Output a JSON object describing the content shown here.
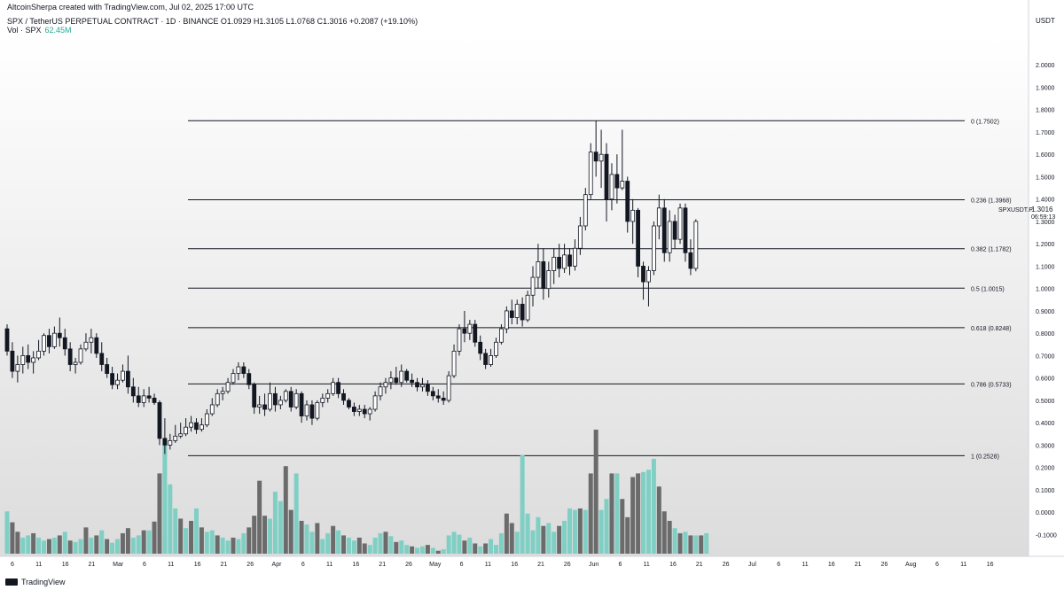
{
  "header": {
    "creator": "AltcoinSherpa created with TradingView.com, Jul 02, 2025 17:00 UTC",
    "symbol_line": "SPX / TetherUS PERPETUAL CONTRACT · 1D · BINANCE   O1.0929  H1.3105  L1.0768  C1.3016  +0.2087 (+19.10%)",
    "vol_label": "Vol · SPX",
    "vol_value": "62.45M"
  },
  "footer": {
    "logo_text": "TradingView"
  },
  "colors": {
    "up": "#ffffff",
    "down": "#131722",
    "candle_border": "#131722",
    "vol_up": "#7fcfc4",
    "vol_down": "#6b6b6b",
    "fib_line": "#131722",
    "axis_text": "#131722"
  },
  "chart_data": {
    "type": "candlestick",
    "title": "SPX / TetherUS PERPETUAL CONTRACT · 1D · BINANCE",
    "symbol_label": "SPXUSDT.P",
    "countdown": "06:59:13",
    "last_price": "1.3016",
    "y_axis_unit": "USDT",
    "ylim": [
      -0.15,
      2.1
    ],
    "y_ticks": [
      "2.0000",
      "1.9000",
      "1.8000",
      "1.7000",
      "1.6000",
      "1.5000",
      "1.4000",
      "1.3000",
      "1.2000",
      "1.1000",
      "1.0000",
      "0.9000",
      "0.8000",
      "0.7000",
      "0.6000",
      "0.5000",
      "0.4000",
      "0.3000",
      "0.2000",
      "0.1000",
      "0.0000",
      "-0.1000"
    ],
    "x_ticks": [
      "6",
      "11",
      "16",
      "21",
      "Mar",
      "6",
      "11",
      "16",
      "21",
      "26",
      "Apr",
      "6",
      "11",
      "16",
      "21",
      "26",
      "May",
      "6",
      "11",
      "16",
      "21",
      "26",
      "Jun",
      "6",
      "11",
      "16",
      "21",
      "26",
      "Jul",
      "6",
      "11",
      "16",
      "21",
      "26",
      "Aug",
      "6",
      "11",
      "16"
    ],
    "fib_levels": [
      {
        "ratio": 0,
        "price": 1.7502,
        "label": "0 (1.7502)"
      },
      {
        "ratio": 0.236,
        "price": 1.3968,
        "label": "0.236 (1.3968)"
      },
      {
        "ratio": 0.382,
        "price": 1.1782,
        "label": "0.382 (1.1782)"
      },
      {
        "ratio": 0.5,
        "price": 1.0015,
        "label": "0.5 (1.0015)"
      },
      {
        "ratio": 0.618,
        "price": 0.8248,
        "label": "0.618 (0.8248)"
      },
      {
        "ratio": 0.786,
        "price": 0.5733,
        "label": "0.786 (0.5733)"
      },
      {
        "ratio": 1,
        "price": 0.2528,
        "label": "1 (0.2528)"
      }
    ],
    "candles": [
      [
        0.82,
        0.84,
        0.7,
        0.72
      ],
      [
        0.72,
        0.76,
        0.6,
        0.63
      ],
      [
        0.63,
        0.7,
        0.58,
        0.66
      ],
      [
        0.66,
        0.74,
        0.62,
        0.7
      ],
      [
        0.7,
        0.75,
        0.64,
        0.67
      ],
      [
        0.67,
        0.72,
        0.62,
        0.69
      ],
      [
        0.69,
        0.77,
        0.68,
        0.72
      ],
      [
        0.72,
        0.8,
        0.7,
        0.79
      ],
      [
        0.79,
        0.82,
        0.71,
        0.74
      ],
      [
        0.74,
        0.83,
        0.73,
        0.8
      ],
      [
        0.8,
        0.87,
        0.74,
        0.78
      ],
      [
        0.78,
        0.82,
        0.7,
        0.73
      ],
      [
        0.73,
        0.76,
        0.63,
        0.66
      ],
      [
        0.66,
        0.69,
        0.62,
        0.67
      ],
      [
        0.67,
        0.75,
        0.66,
        0.73
      ],
      [
        0.73,
        0.8,
        0.72,
        0.76
      ],
      [
        0.76,
        0.82,
        0.71,
        0.78
      ],
      [
        0.78,
        0.8,
        0.69,
        0.71
      ],
      [
        0.71,
        0.76,
        0.63,
        0.66
      ],
      [
        0.66,
        0.69,
        0.6,
        0.62
      ],
      [
        0.62,
        0.65,
        0.55,
        0.57
      ],
      [
        0.57,
        0.62,
        0.55,
        0.59
      ],
      [
        0.59,
        0.66,
        0.58,
        0.63
      ],
      [
        0.63,
        0.7,
        0.53,
        0.56
      ],
      [
        0.56,
        0.6,
        0.49,
        0.52
      ],
      [
        0.52,
        0.56,
        0.47,
        0.49
      ],
      [
        0.49,
        0.55,
        0.47,
        0.52
      ],
      [
        0.52,
        0.56,
        0.49,
        0.51
      ],
      [
        0.51,
        0.53,
        0.48,
        0.49
      ],
      [
        0.49,
        0.5,
        0.3,
        0.33
      ],
      [
        0.33,
        0.42,
        0.26,
        0.3
      ],
      [
        0.3,
        0.35,
        0.28,
        0.32
      ],
      [
        0.32,
        0.39,
        0.31,
        0.34
      ],
      [
        0.34,
        0.4,
        0.33,
        0.35
      ],
      [
        0.35,
        0.42,
        0.34,
        0.38
      ],
      [
        0.38,
        0.43,
        0.36,
        0.4
      ],
      [
        0.4,
        0.42,
        0.35,
        0.37
      ],
      [
        0.37,
        0.42,
        0.36,
        0.39
      ],
      [
        0.39,
        0.46,
        0.38,
        0.44
      ],
      [
        0.44,
        0.51,
        0.43,
        0.48
      ],
      [
        0.48,
        0.55,
        0.47,
        0.53
      ],
      [
        0.53,
        0.56,
        0.5,
        0.54
      ],
      [
        0.54,
        0.6,
        0.53,
        0.58
      ],
      [
        0.58,
        0.64,
        0.57,
        0.62
      ],
      [
        0.62,
        0.67,
        0.59,
        0.65
      ],
      [
        0.65,
        0.67,
        0.6,
        0.62
      ],
      [
        0.62,
        0.64,
        0.55,
        0.57
      ],
      [
        0.57,
        0.58,
        0.44,
        0.47
      ],
      [
        0.47,
        0.52,
        0.44,
        0.48
      ],
      [
        0.48,
        0.53,
        0.43,
        0.46
      ],
      [
        0.46,
        0.58,
        0.45,
        0.53
      ],
      [
        0.53,
        0.56,
        0.45,
        0.48
      ],
      [
        0.48,
        0.52,
        0.46,
        0.5
      ],
      [
        0.5,
        0.55,
        0.49,
        0.54
      ],
      [
        0.54,
        0.56,
        0.45,
        0.47
      ],
      [
        0.47,
        0.55,
        0.46,
        0.53
      ],
      [
        0.53,
        0.54,
        0.4,
        0.43
      ],
      [
        0.43,
        0.5,
        0.41,
        0.48
      ],
      [
        0.48,
        0.5,
        0.39,
        0.42
      ],
      [
        0.42,
        0.5,
        0.41,
        0.49
      ],
      [
        0.49,
        0.53,
        0.47,
        0.51
      ],
      [
        0.51,
        0.55,
        0.49,
        0.53
      ],
      [
        0.53,
        0.6,
        0.52,
        0.58
      ],
      [
        0.58,
        0.6,
        0.51,
        0.53
      ],
      [
        0.53,
        0.55,
        0.48,
        0.5
      ],
      [
        0.5,
        0.51,
        0.46,
        0.47
      ],
      [
        0.47,
        0.49,
        0.43,
        0.45
      ],
      [
        0.45,
        0.48,
        0.43,
        0.46
      ],
      [
        0.46,
        0.48,
        0.42,
        0.44
      ],
      [
        0.44,
        0.47,
        0.41,
        0.46
      ],
      [
        0.46,
        0.54,
        0.45,
        0.52
      ],
      [
        0.52,
        0.58,
        0.5,
        0.56
      ],
      [
        0.56,
        0.6,
        0.53,
        0.58
      ],
      [
        0.58,
        0.63,
        0.55,
        0.6
      ],
      [
        0.6,
        0.65,
        0.57,
        0.58
      ],
      [
        0.58,
        0.66,
        0.56,
        0.63
      ],
      [
        0.63,
        0.64,
        0.58,
        0.59
      ],
      [
        0.59,
        0.62,
        0.56,
        0.58
      ],
      [
        0.58,
        0.6,
        0.54,
        0.56
      ],
      [
        0.56,
        0.6,
        0.54,
        0.57
      ],
      [
        0.57,
        0.59,
        0.52,
        0.54
      ],
      [
        0.54,
        0.56,
        0.5,
        0.52
      ],
      [
        0.52,
        0.55,
        0.49,
        0.51
      ],
      [
        0.51,
        0.54,
        0.48,
        0.5
      ],
      [
        0.5,
        0.63,
        0.49,
        0.61
      ],
      [
        0.61,
        0.75,
        0.6,
        0.72
      ],
      [
        0.72,
        0.84,
        0.7,
        0.82
      ],
      [
        0.82,
        0.9,
        0.76,
        0.8
      ],
      [
        0.8,
        0.86,
        0.77,
        0.84
      ],
      [
        0.84,
        0.86,
        0.74,
        0.76
      ],
      [
        0.76,
        0.79,
        0.68,
        0.71
      ],
      [
        0.71,
        0.73,
        0.64,
        0.66
      ],
      [
        0.66,
        0.73,
        0.65,
        0.7
      ],
      [
        0.7,
        0.78,
        0.69,
        0.76
      ],
      [
        0.76,
        0.84,
        0.75,
        0.82
      ],
      [
        0.82,
        0.92,
        0.8,
        0.9
      ],
      [
        0.9,
        0.95,
        0.84,
        0.87
      ],
      [
        0.87,
        0.95,
        0.84,
        0.93
      ],
      [
        0.93,
        0.96,
        0.83,
        0.86
      ],
      [
        0.86,
        0.99,
        0.85,
        0.97
      ],
      [
        0.97,
        1.1,
        0.92,
        1.05
      ],
      [
        1.05,
        1.2,
        1.0,
        1.12
      ],
      [
        1.12,
        1.18,
        0.95,
        1.0
      ],
      [
        1.0,
        1.12,
        0.96,
        1.08
      ],
      [
        1.08,
        1.18,
        1.02,
        1.14
      ],
      [
        1.14,
        1.2,
        1.05,
        1.09
      ],
      [
        1.09,
        1.2,
        1.07,
        1.15
      ],
      [
        1.15,
        1.18,
        1.06,
        1.1
      ],
      [
        1.1,
        1.22,
        1.08,
        1.18
      ],
      [
        1.18,
        1.32,
        1.15,
        1.28
      ],
      [
        1.28,
        1.45,
        1.26,
        1.42
      ],
      [
        1.42,
        1.65,
        1.4,
        1.61
      ],
      [
        1.61,
        1.75,
        1.5,
        1.57
      ],
      [
        1.57,
        1.71,
        1.45,
        1.6
      ],
      [
        1.6,
        1.65,
        1.3,
        1.4
      ],
      [
        1.4,
        1.56,
        1.35,
        1.51
      ],
      [
        1.51,
        1.6,
        1.38,
        1.45
      ],
      [
        1.45,
        1.71,
        1.44,
        1.48
      ],
      [
        1.48,
        1.5,
        1.25,
        1.3
      ],
      [
        1.3,
        1.4,
        1.2,
        1.35
      ],
      [
        1.35,
        1.36,
        1.05,
        1.1
      ],
      [
        1.1,
        1.12,
        0.95,
        1.03
      ],
      [
        1.03,
        1.1,
        0.92,
        1.08
      ],
      [
        1.08,
        1.3,
        1.06,
        1.28
      ],
      [
        1.28,
        1.42,
        1.22,
        1.36
      ],
      [
        1.36,
        1.4,
        1.12,
        1.16
      ],
      [
        1.16,
        1.35,
        1.12,
        1.3
      ],
      [
        1.3,
        1.33,
        1.18,
        1.22
      ],
      [
        1.22,
        1.38,
        1.2,
        1.36
      ],
      [
        1.36,
        1.38,
        1.12,
        1.16
      ],
      [
        1.16,
        1.22,
        1.06,
        1.09
      ],
      [
        1.09,
        1.31,
        1.077,
        1.3
      ]
    ],
    "volumes": [
      [
        58,
        1
      ],
      [
        43,
        0
      ],
      [
        30,
        0
      ],
      [
        22,
        1
      ],
      [
        25,
        1
      ],
      [
        28,
        0
      ],
      [
        22,
        1
      ],
      [
        18,
        1
      ],
      [
        20,
        0
      ],
      [
        22,
        1
      ],
      [
        25,
        0
      ],
      [
        30,
        1
      ],
      [
        18,
        0
      ],
      [
        16,
        1
      ],
      [
        20,
        1
      ],
      [
        36,
        0
      ],
      [
        22,
        1
      ],
      [
        25,
        0
      ],
      [
        32,
        1
      ],
      [
        20,
        0
      ],
      [
        15,
        1
      ],
      [
        20,
        1
      ],
      [
        28,
        0
      ],
      [
        35,
        0
      ],
      [
        22,
        1
      ],
      [
        25,
        1
      ],
      [
        32,
        0
      ],
      [
        32,
        1
      ],
      [
        44,
        0
      ],
      [
        110,
        0
      ],
      [
        155,
        1
      ],
      [
        95,
        1
      ],
      [
        62,
        1
      ],
      [
        48,
        0
      ],
      [
        35,
        1
      ],
      [
        45,
        0
      ],
      [
        62,
        1
      ],
      [
        36,
        0
      ],
      [
        30,
        1
      ],
      [
        32,
        1
      ],
      [
        25,
        0
      ],
      [
        22,
        1
      ],
      [
        18,
        1
      ],
      [
        22,
        0
      ],
      [
        20,
        1
      ],
      [
        28,
        1
      ],
      [
        36,
        0
      ],
      [
        52,
        0
      ],
      [
        100,
        0
      ],
      [
        52,
        0
      ],
      [
        48,
        1
      ],
      [
        85,
        1
      ],
      [
        72,
        1
      ],
      [
        120,
        0
      ],
      [
        60,
        0
      ],
      [
        110,
        1
      ],
      [
        45,
        0
      ],
      [
        40,
        1
      ],
      [
        30,
        1
      ],
      [
        42,
        0
      ],
      [
        20,
        1
      ],
      [
        28,
        1
      ],
      [
        38,
        0
      ],
      [
        32,
        1
      ],
      [
        25,
        0
      ],
      [
        22,
        1
      ],
      [
        18,
        1
      ],
      [
        22,
        0
      ],
      [
        14,
        0
      ],
      [
        12,
        1
      ],
      [
        22,
        1
      ],
      [
        28,
        1
      ],
      [
        30,
        0
      ],
      [
        24,
        1
      ],
      [
        16,
        0
      ],
      [
        18,
        1
      ],
      [
        12,
        1
      ],
      [
        10,
        0
      ],
      [
        8,
        1
      ],
      [
        10,
        1
      ],
      [
        12,
        0
      ],
      [
        8,
        1
      ],
      [
        4,
        0
      ],
      [
        6,
        1
      ],
      [
        25,
        1
      ],
      [
        30,
        1
      ],
      [
        26,
        1
      ],
      [
        18,
        0
      ],
      [
        22,
        1
      ],
      [
        14,
        0
      ],
      [
        10,
        1
      ],
      [
        14,
        0
      ],
      [
        20,
        1
      ],
      [
        12,
        1
      ],
      [
        28,
        1
      ],
      [
        55,
        0
      ],
      [
        42,
        0
      ],
      [
        30,
        1
      ],
      [
        135,
        1
      ],
      [
        55,
        1
      ],
      [
        32,
        1
      ],
      [
        50,
        1
      ],
      [
        38,
        0
      ],
      [
        42,
        1
      ],
      [
        30,
        1
      ],
      [
        38,
        0
      ],
      [
        45,
        1
      ],
      [
        62,
        1
      ],
      [
        60,
        1
      ],
      [
        62,
        0
      ],
      [
        60,
        1
      ],
      [
        110,
        0
      ],
      [
        170,
        0
      ],
      [
        60,
        1
      ],
      [
        75,
        1
      ],
      [
        110,
        0
      ],
      [
        110,
        1
      ],
      [
        75,
        0
      ],
      [
        50,
        0
      ],
      [
        105,
        0
      ],
      [
        110,
        0
      ],
      [
        112,
        1
      ],
      [
        115,
        1
      ],
      [
        130,
        1
      ],
      [
        92,
        0
      ],
      [
        58,
        0
      ],
      [
        45,
        0
      ],
      [
        35,
        1
      ],
      [
        28,
        0
      ],
      [
        30,
        1
      ],
      [
        25,
        0
      ],
      [
        25,
        1
      ],
      [
        25,
        0
      ],
      [
        28,
        1
      ]
    ]
  }
}
